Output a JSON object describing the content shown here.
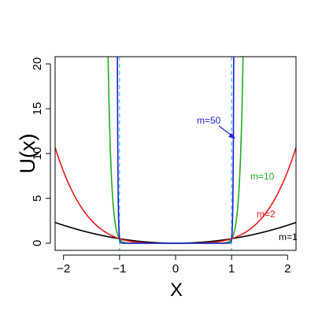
{
  "chart_data": {
    "type": "line",
    "xlabel": "X",
    "ylabel": "U(x)",
    "xlim": [
      -2.15,
      2.15
    ],
    "ylim": [
      -0.8,
      20.8
    ],
    "xticks": [
      -2,
      -1,
      0,
      1,
      2
    ],
    "xtick_labels": [
      "−2",
      "−1",
      "0",
      "1",
      "2"
    ],
    "yticks": [
      0,
      5,
      10,
      15,
      20
    ],
    "ytick_labels": [
      "0",
      "5",
      "10",
      "15",
      "20"
    ],
    "grid": false,
    "legend": "none",
    "series": [
      {
        "name": "m=1",
        "m": 1,
        "color": "#000000"
      },
      {
        "name": "m=2",
        "m": 2,
        "color": "#e41a1c"
      },
      {
        "name": "m=10",
        "m": 10,
        "color": "#22aa22"
      },
      {
        "name": "m=50",
        "m": 50,
        "color": "#1f1fcc"
      }
    ],
    "reference_lines": {
      "x": [
        -1,
        1
      ],
      "color": "#33bbee",
      "style": "dashed"
    },
    "annotation": {
      "text": "m=50",
      "arrow": true,
      "color": "#1f1fcc"
    }
  }
}
